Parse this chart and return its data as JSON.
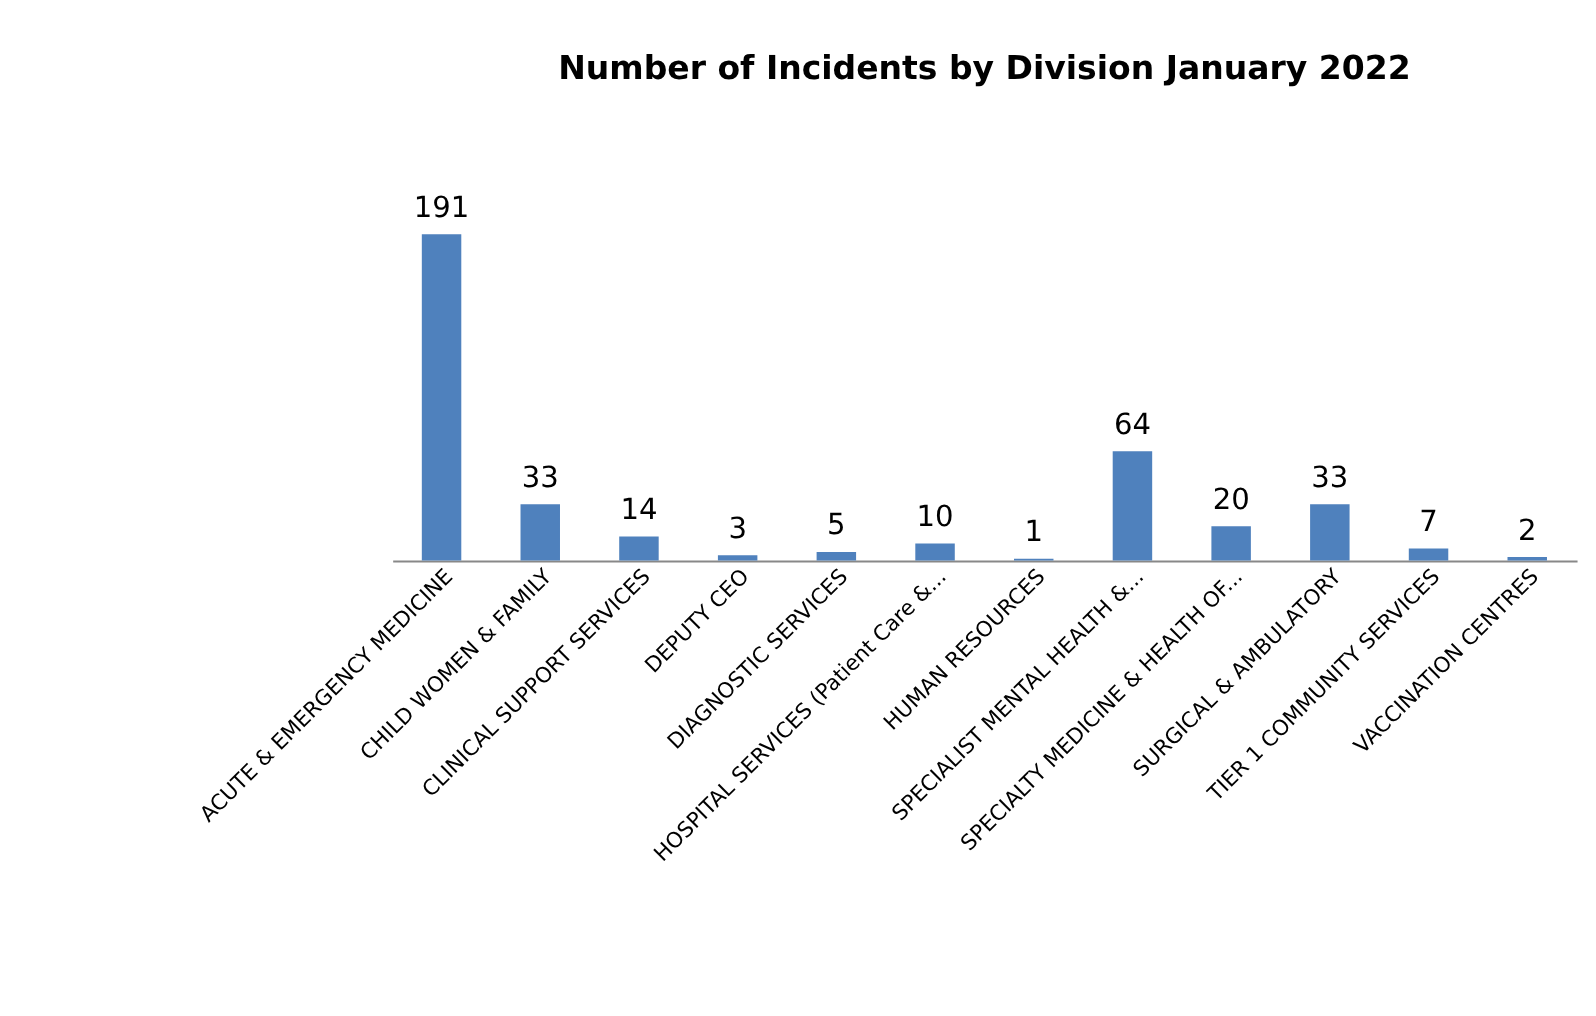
{
  "chart_data": {
    "type": "bar",
    "title": "Number of Incidents by Division January 2022",
    "categories": [
      "ACUTE & EMERGENCY MEDICINE",
      "CHILD WOMEN & FAMILY",
      "CLINICAL SUPPORT SERVICES",
      "DEPUTY CEO",
      "DIAGNOSTIC SERVICES",
      "HOSPITAL SERVICES (Patient Care &...",
      "HUMAN RESOURCES",
      "SPECIALIST MENTAL HEALTH  &...",
      "SPECIALTY MEDICINE & HEALTH OF...",
      "SURGICAL & AMBULATORY",
      "TIER 1 COMMUNITY SERVICES",
      "VACCINATION CENTRES"
    ],
    "values": [
      191,
      33,
      14,
      3,
      5,
      10,
      1,
      64,
      20,
      33,
      7,
      2
    ],
    "color": "#4f81bd",
    "data_labels": true,
    "grid": false
  }
}
